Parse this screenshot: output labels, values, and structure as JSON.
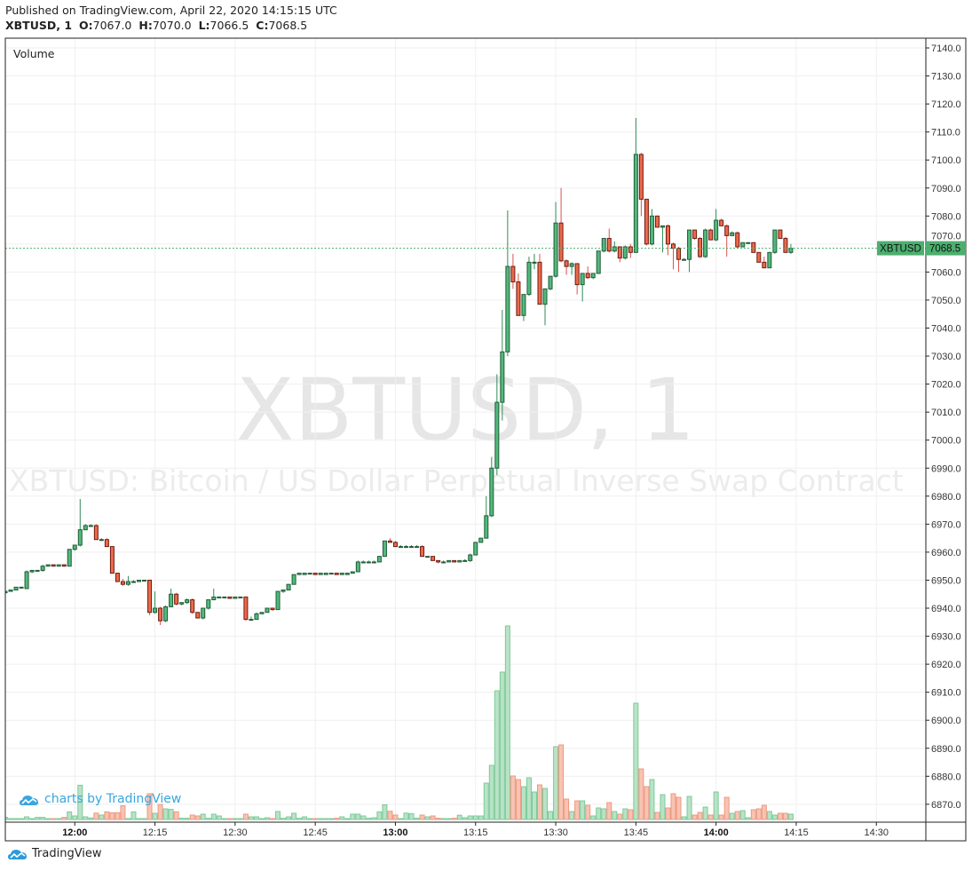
{
  "header": {
    "published": "Published on TradingView.com, April 22, 2020 14:15:15 UTC",
    "symbol": "XBTUSD, 1",
    "o_label": "O:",
    "o_value": "7067.0",
    "h_label": "H:",
    "h_value": "7070.0",
    "l_label": "L:",
    "l_value": "7066.5",
    "c_label": "C:",
    "c_value": "7068.5"
  },
  "pane_label": "Volume",
  "watermark": {
    "title": "XBTUSD, 1",
    "subtitle": "XBTUSD: Bitcoin / US Dollar Perpetual Inverse Swap Contract"
  },
  "branding": {
    "charts_by": "charts by TradingView",
    "footer": "TradingView"
  },
  "last_price": {
    "symbol": "XBTUSD",
    "value": "7068.5",
    "price": 7068.5
  },
  "colors": {
    "up": "#53b97c",
    "up_border": "#1f5c38",
    "up_wick": "#2e8b57",
    "down": "#ec6a4c",
    "down_border": "#6e1c10",
    "down_wick": "#d9534f",
    "vol_up": "#b9e2c6",
    "vol_up_border": "#7ccb99",
    "vol_down": "#f8c3b2",
    "vol_down_border": "#ee9880",
    "last_price": "#4caf6e",
    "grid": "#efefef",
    "brand": "#3aa6dd"
  },
  "chart_data": {
    "type": "candlestick",
    "interval": "1 minute",
    "ylim": [
      6864,
      7143
    ],
    "y_ticks": [
      "6870.0",
      "6880.0",
      "6890.0",
      "6900.0",
      "6910.0",
      "6920.0",
      "6930.0",
      "6940.0",
      "6950.0",
      "6960.0",
      "6970.0",
      "6980.0",
      "6990.0",
      "7000.0",
      "7010.0",
      "7020.0",
      "7030.0",
      "7040.0",
      "7050.0",
      "7060.0",
      "7070.0",
      "7080.0",
      "7090.0",
      "7100.0",
      "7110.0",
      "7120.0",
      "7130.0",
      "7140.0"
    ],
    "x_ticks": [
      {
        "label": "12:00",
        "bold": true
      },
      {
        "label": "12:15",
        "bold": false
      },
      {
        "label": "12:30",
        "bold": false
      },
      {
        "label": "12:45",
        "bold": false
      },
      {
        "label": "13:00",
        "bold": true
      },
      {
        "label": "13:15",
        "bold": false
      },
      {
        "label": "13:30",
        "bold": false
      },
      {
        "label": "13:45",
        "bold": false
      },
      {
        "label": "14:00",
        "bold": true
      },
      {
        "label": "14:15",
        "bold": false
      },
      {
        "label": "14:30",
        "bold": false
      }
    ],
    "xlim": [
      "11:47",
      "14:40"
    ],
    "grid": true,
    "columns": [
      "time",
      "open",
      "high",
      "low",
      "close",
      "volume_relative"
    ],
    "candles": [
      [
        "11:47",
        6945.5,
        6946,
        6945,
        6946,
        2.4
      ],
      [
        "11:48",
        6946,
        6946.5,
        6946,
        6946.5,
        1
      ],
      [
        "11:49",
        6946.5,
        6947.5,
        6946.5,
        6947.5,
        0.5
      ],
      [
        "11:50",
        6947.5,
        6947.5,
        6947,
        6947.5,
        0.5
      ],
      [
        "11:51",
        6947,
        6953.5,
        6947,
        6953,
        3
      ],
      [
        "11:52",
        6953,
        6953.5,
        6952.5,
        6953.5,
        0.5
      ],
      [
        "11:53",
        6953.5,
        6953.5,
        6953.5,
        6953.5,
        2.4
      ],
      [
        "11:54",
        6953.5,
        6955.5,
        6953,
        6955,
        2.4
      ],
      [
        "11:55",
        6955,
        6955.5,
        6955,
        6955.5,
        0.3
      ],
      [
        "11:56",
        6955.5,
        6955.5,
        6955,
        6955,
        0.3
      ],
      [
        "11:57",
        6955,
        6955.5,
        6955,
        6955.5,
        0.3
      ],
      [
        "11:58",
        6955.5,
        6955.5,
        6955,
        6955,
        2.4
      ],
      [
        "11:59",
        6955,
        6961,
        6955,
        6961,
        8.6
      ],
      [
        "12:00",
        6961,
        6962.5,
        6960.5,
        6962.5,
        4
      ],
      [
        "12:01",
        6962.5,
        6979,
        6962,
        6968,
        38.6
      ],
      [
        "12:02",
        6968,
        6970,
        6968,
        6969.5,
        3
      ],
      [
        "12:03",
        6969.5,
        6970,
        6969.5,
        6969.5,
        1.7
      ],
      [
        "12:04",
        6969.5,
        6970,
        6964.5,
        6964.5,
        7.2
      ],
      [
        "12:05",
        6964.5,
        6965,
        6964,
        6964.5,
        5
      ],
      [
        "12:06",
        6964.5,
        6965,
        6962,
        6962,
        8.6
      ],
      [
        "12:07",
        6962,
        6962,
        6952.5,
        6952.5,
        7.5
      ],
      [
        "12:08",
        6952.5,
        6952.5,
        6949.5,
        6949.5,
        7.5
      ],
      [
        "12:09",
        6949.5,
        6950.5,
        6948,
        6948.5,
        15.5
      ],
      [
        "12:10",
        6948.5,
        6951.5,
        6948,
        6949.5,
        1
      ],
      [
        "12:11",
        6949.5,
        6950,
        6949.5,
        6949.5,
        8.6
      ],
      [
        "12:12",
        6949.5,
        6950,
        6949.5,
        6950,
        1
      ],
      [
        "12:13",
        6950,
        6950,
        6950,
        6950,
        1
      ],
      [
        "12:14",
        6950,
        6950,
        6937.5,
        6938.5,
        29
      ],
      [
        "12:15",
        6938.5,
        6946,
        6938,
        6940,
        7
      ],
      [
        "12:16",
        6940,
        6940.5,
        6934,
        6935.5,
        17
      ],
      [
        "12:17",
        6935.5,
        6941,
        6935,
        6940.5,
        12
      ],
      [
        "12:18",
        6940.5,
        6947,
        6940.5,
        6945,
        11.4
      ],
      [
        "12:19",
        6945,
        6945.5,
        6941,
        6941.5,
        8.6
      ],
      [
        "12:20",
        6941.5,
        6942,
        6941,
        6942,
        1.4
      ],
      [
        "12:21",
        6942,
        6943.5,
        6941.5,
        6943,
        1.4
      ],
      [
        "12:22",
        6943,
        6943.5,
        6938,
        6938.5,
        5
      ],
      [
        "12:23",
        6938.5,
        6938.5,
        6936.5,
        6936.5,
        4
      ],
      [
        "12:24",
        6936.5,
        6940,
        6936,
        6940,
        6
      ],
      [
        "12:25",
        6940,
        6943,
        6939.5,
        6943,
        1.4
      ],
      [
        "12:26",
        6943,
        6947,
        6943,
        6944,
        6
      ],
      [
        "12:27",
        6944,
        6944,
        6944,
        6944,
        4
      ],
      [
        "12:28",
        6944,
        6944,
        6943.5,
        6944,
        0.3
      ],
      [
        "12:29",
        6944,
        6944,
        6943.5,
        6943.5,
        0.3
      ],
      [
        "12:30",
        6943.5,
        6944,
        6943.5,
        6944,
        0.3
      ],
      [
        "12:31",
        6944,
        6944,
        6943.5,
        6944,
        0.3
      ],
      [
        "12:32",
        6944,
        6944,
        6935.5,
        6936,
        6
      ],
      [
        "12:33",
        6936,
        6937,
        6935.5,
        6936,
        3
      ],
      [
        "12:34",
        6936,
        6938.5,
        6936,
        6938,
        3
      ],
      [
        "12:35",
        6938,
        6938.5,
        6938,
        6938.5,
        1
      ],
      [
        "12:36",
        6938.5,
        6940,
        6938.5,
        6940,
        2
      ],
      [
        "12:37",
        6940,
        6940,
        6939,
        6939.5,
        1
      ],
      [
        "12:38",
        6939.5,
        6946,
        6939.5,
        6946,
        9
      ],
      [
        "12:39",
        6946,
        6946.5,
        6945.5,
        6946.5,
        1.4
      ],
      [
        "12:40",
        6946.5,
        6948.5,
        6946.5,
        6948.5,
        3
      ],
      [
        "12:41",
        6948.5,
        6952,
        6948.5,
        6952,
        7
      ],
      [
        "12:42",
        6952,
        6952.5,
        6952,
        6952.5,
        1.4
      ],
      [
        "12:43",
        6952,
        6952.5,
        6952,
        6952.5,
        3
      ],
      [
        "12:44",
        6952.5,
        6952.5,
        6952,
        6952.5,
        0.3
      ],
      [
        "12:45",
        6952.5,
        6952.5,
        6952,
        6952,
        0.3
      ],
      [
        "12:46",
        6952,
        6952.5,
        6952,
        6952.5,
        0.3
      ],
      [
        "12:47",
        6952,
        6952.5,
        6952,
        6952.5,
        0.3
      ],
      [
        "12:48",
        6952.5,
        6952.5,
        6952.5,
        6952.5,
        1
      ],
      [
        "12:49",
        6952.5,
        6952.5,
        6952,
        6952,
        1.4
      ],
      [
        "12:50",
        6952,
        6952.5,
        6952,
        6952.5,
        3
      ],
      [
        "12:51",
        6952,
        6952.5,
        6952,
        6952.5,
        0.3
      ],
      [
        "12:52",
        6952.5,
        6953,
        6952.5,
        6953,
        6
      ],
      [
        "12:53",
        6953,
        6957,
        6953,
        6956.5,
        6
      ],
      [
        "12:54",
        6956.5,
        6957,
        6956.5,
        6956.5,
        4
      ],
      [
        "12:55",
        6956.5,
        6957,
        6956.5,
        6956.5,
        1.4
      ],
      [
        "12:56",
        6956.5,
        6957,
        6956.5,
        6956.5,
        2
      ],
      [
        "12:57",
        6956.5,
        6958.5,
        6956.5,
        6958.5,
        8.6
      ],
      [
        "12:58",
        6958.5,
        6964,
        6958.5,
        6964,
        16.5
      ],
      [
        "12:59",
        6964,
        6965,
        6963.5,
        6963.5,
        9.3
      ],
      [
        "13:00",
        6963.5,
        6964,
        6962,
        6962,
        5
      ],
      [
        "13:01",
        6962,
        6962.5,
        6962,
        6962,
        0.3
      ],
      [
        "13:02",
        6962,
        6962.5,
        6962,
        6962,
        7.2
      ],
      [
        "13:03",
        6962,
        6962.5,
        6962,
        6962,
        6.5
      ],
      [
        "13:04",
        6962,
        6962.5,
        6962,
        6962,
        1.4
      ],
      [
        "13:05",
        6962,
        6962.5,
        6958.5,
        6958.5,
        5
      ],
      [
        "13:06",
        6958.5,
        6958.5,
        6958.5,
        6958.5,
        3
      ],
      [
        "13:07",
        6958.5,
        6958.5,
        6957,
        6957,
        4
      ],
      [
        "13:08",
        6957,
        6957,
        6956,
        6956.5,
        1.4
      ],
      [
        "13:09",
        6956.5,
        6957,
        6956.5,
        6956.5,
        0.5
      ],
      [
        "13:10",
        6956.5,
        6957,
        6956.5,
        6957,
        0.5
      ],
      [
        "13:11",
        6957,
        6957,
        6956.5,
        6956.5,
        1.4
      ],
      [
        "13:12",
        6956.5,
        6957,
        6956.5,
        6957,
        4.8
      ],
      [
        "13:13",
        6957,
        6957.5,
        6957,
        6957,
        2
      ],
      [
        "13:14",
        6957,
        6959.5,
        6956.5,
        6959,
        4
      ],
      [
        "13:15",
        6959,
        6963.5,
        6959,
        6963.5,
        4
      ],
      [
        "13:16",
        6963.5,
        6965,
        6963.5,
        6965,
        4
      ],
      [
        "13:17",
        6965,
        6980,
        6965,
        6973,
        41
      ],
      [
        "13:18",
        6973,
        6994,
        6972.5,
        6990,
        61
      ],
      [
        "13:19",
        6990,
        7023.5,
        6987.5,
        7013.5,
        145
      ],
      [
        "13:20",
        7013.5,
        7046.5,
        7007,
        7031.5,
        166
      ],
      [
        "13:21",
        7031.5,
        7082,
        7030,
        7062,
        218
      ],
      [
        "13:22",
        7062,
        7066.5,
        7054,
        7056.5,
        49
      ],
      [
        "13:23",
        7056.5,
        7059.5,
        7044.5,
        7044.5,
        45
      ],
      [
        "13:24",
        7044.5,
        7052,
        7042.5,
        7052,
        37
      ],
      [
        "13:25",
        7052,
        7065.5,
        7051.5,
        7063.5,
        47
      ],
      [
        "13:26",
        7063.5,
        7066.5,
        7061,
        7063.5,
        31
      ],
      [
        "13:27",
        7063.5,
        7066.5,
        7048.5,
        7048.5,
        39
      ],
      [
        "13:28",
        7048.5,
        7054,
        7041,
        7054,
        35
      ],
      [
        "13:29",
        7054,
        7058.5,
        7053.5,
        7058.5,
        9
      ],
      [
        "13:30",
        7058.5,
        7085,
        7058,
        7077.5,
        82
      ],
      [
        "13:31",
        7077.5,
        7090,
        7063.5,
        7064,
        84
      ],
      [
        "13:32",
        7064,
        7064.5,
        7059,
        7062,
        23
      ],
      [
        "13:33",
        7062,
        7063.5,
        7059,
        7063,
        9
      ],
      [
        "13:34",
        7063,
        7063,
        7052,
        7055.5,
        21
      ],
      [
        "13:35",
        7055.5,
        7059.5,
        7049.5,
        7059.5,
        21
      ],
      [
        "13:36",
        7059.5,
        7062,
        7057.5,
        7058,
        16
      ],
      [
        "13:37",
        7058,
        7059.5,
        7057.5,
        7059.5,
        4
      ],
      [
        "13:38",
        7059.5,
        7067.5,
        7059.5,
        7067.5,
        13
      ],
      [
        "13:39",
        7067.5,
        7072,
        7067,
        7072,
        12
      ],
      [
        "13:40",
        7072,
        7075.5,
        7067,
        7067.5,
        19
      ],
      [
        "13:41",
        7067.5,
        7071,
        7067,
        7069,
        9
      ],
      [
        "13:42",
        7069,
        7069,
        7063.5,
        7065,
        6
      ],
      [
        "13:43",
        7065,
        7069.5,
        7064.5,
        7069,
        12
      ],
      [
        "13:44",
        7069,
        7070,
        7065,
        7067,
        11
      ],
      [
        "13:45",
        7067,
        7115,
        7067,
        7102,
        131
      ],
      [
        "13:46",
        7102,
        7102.5,
        7080,
        7086,
        57
      ],
      [
        "13:47",
        7086,
        7086,
        7069.5,
        7070,
        37
      ],
      [
        "13:48",
        7070,
        7082.5,
        7069.5,
        7080,
        45
      ],
      [
        "13:49",
        7080,
        7080,
        7076,
        7076,
        8
      ],
      [
        "13:50",
        7076,
        7076.5,
        7067,
        7076.5,
        28
      ],
      [
        "13:51",
        7076.5,
        7077,
        7066,
        7070,
        13
      ],
      [
        "13:52",
        7070,
        7070.5,
        7061,
        7068.5,
        29
      ],
      [
        "13:53",
        7068.5,
        7069,
        7060,
        7064.5,
        25
      ],
      [
        "13:54",
        7064.5,
        7065,
        7064.5,
        7064.5,
        3
      ],
      [
        "13:55",
        7064.5,
        7075,
        7060,
        7075,
        26
      ],
      [
        "13:56",
        7075,
        7075,
        7071.5,
        7072,
        5
      ],
      [
        "13:57",
        7072,
        7072.5,
        7065,
        7065.5,
        8
      ],
      [
        "13:58",
        7065.5,
        7075.5,
        7065,
        7075,
        14
      ],
      [
        "13:59",
        7075,
        7075.5,
        7071.5,
        7071.5,
        5
      ],
      [
        "14:00",
        7071.5,
        7082.5,
        7071,
        7078.5,
        31
      ],
      [
        "14:01",
        7078.5,
        7079,
        7076.5,
        7076.5,
        5
      ],
      [
        "14:02",
        7076.5,
        7077,
        7065.5,
        7073,
        25
      ],
      [
        "14:03",
        7073,
        7074.5,
        7073,
        7074,
        7
      ],
      [
        "14:04",
        7074,
        7074.5,
        7068.5,
        7069,
        9
      ],
      [
        "14:05",
        7069,
        7070.5,
        7069,
        7070.5,
        10
      ],
      [
        "14:06",
        7070.5,
        7070.5,
        7070,
        7070.5,
        2
      ],
      [
        "14:07",
        7070.5,
        7070.5,
        7067,
        7067,
        11
      ],
      [
        "14:08",
        7067,
        7067,
        7063.5,
        7063.5,
        12
      ],
      [
        "14:09",
        7063.5,
        7065.5,
        7061.5,
        7061.5,
        16
      ],
      [
        "14:10",
        7061.5,
        7067,
        7061.5,
        7067,
        9
      ],
      [
        "14:11",
        7067,
        7075,
        7066.5,
        7075,
        5
      ],
      [
        "14:12",
        7075,
        7075,
        7072,
        7072,
        7
      ],
      [
        "14:13",
        7072,
        7072.5,
        7067,
        7067,
        7
      ],
      [
        "14:14",
        7067,
        7070,
        7066.5,
        7068.5,
        6
      ]
    ]
  }
}
